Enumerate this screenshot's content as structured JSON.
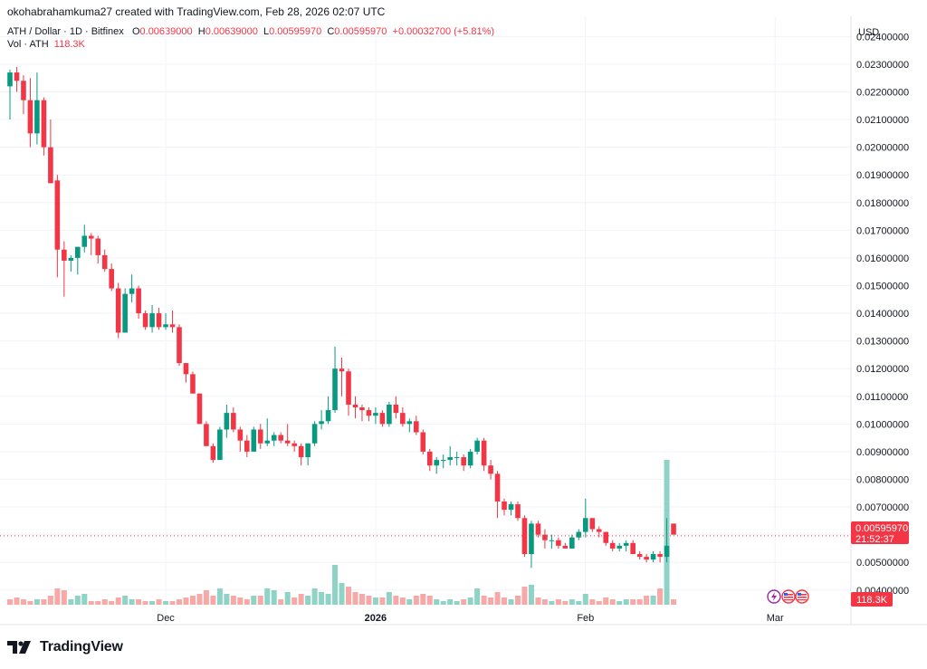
{
  "header": {
    "credit": "okohabrahamkuma27 created with TradingView.com, Feb 28, 2026 02:07 UTC",
    "symbol": "ATH / Dollar · 1D · Bitfinex",
    "o_label": "O",
    "o_value": "0.00639000",
    "h_label": "H",
    "h_value": "0.00639000",
    "l_label": "L",
    "l_value": "0.00595970",
    "c_label": "C",
    "c_value": "0.00595970",
    "change": "+0.00032700 (+5.81%)",
    "vol_label": "Vol · ATH",
    "vol_value": "118.3K",
    "currency": "USD"
  },
  "price_badge": {
    "price": "0.00595970",
    "countdown": "21:52:37"
  },
  "volume_badge": "118.3K",
  "branding": "TradingView",
  "colors": {
    "up": "#089981",
    "down": "#f23645",
    "up_volume": "#8fd3c7",
    "down_volume": "#f7a9a7",
    "grid": "#f0f3fa"
  },
  "chart_data": {
    "type": "candlestick",
    "title": "ATH / Dollar · 1D · Bitfinex",
    "y_axis_ticks": [
      "0.02400000",
      "0.02300000",
      "0.02200000",
      "0.02100000",
      "0.02000000",
      "0.01900000",
      "0.01800000",
      "0.01700000",
      "0.01600000",
      "0.01500000",
      "0.01400000",
      "0.01300000",
      "0.01200000",
      "0.01100000",
      "0.01000000",
      "0.00900000",
      "0.00800000",
      "0.00700000",
      "0.00600000",
      "0.00500000",
      "0.00400000"
    ],
    "ylim": [
      0.0036,
      0.0246
    ],
    "x_axis_labels": [
      {
        "label": "Dec",
        "index": 23
      },
      {
        "label": "2026",
        "index": 54,
        "bold": true
      },
      {
        "label": "Feb",
        "index": 85
      },
      {
        "label": "Mar",
        "index": 113
      }
    ],
    "current_price": 0.0059597,
    "candles": [
      {
        "o": 0.0222,
        "h": 0.0228,
        "l": 0.021,
        "c": 0.0227
      },
      {
        "o": 0.0227,
        "h": 0.0229,
        "l": 0.022,
        "c": 0.0224
      },
      {
        "o": 0.0224,
        "h": 0.0226,
        "l": 0.0212,
        "c": 0.0217
      },
      {
        "o": 0.0217,
        "h": 0.0225,
        "l": 0.02,
        "c": 0.0205
      },
      {
        "o": 0.0205,
        "h": 0.0227,
        "l": 0.0201,
        "c": 0.0217
      },
      {
        "o": 0.0217,
        "h": 0.0218,
        "l": 0.0197,
        "c": 0.02
      },
      {
        "o": 0.02,
        "h": 0.021,
        "l": 0.0188,
        "c": 0.0187
      },
      {
        "o": 0.0188,
        "h": 0.019,
        "l": 0.0153,
        "c": 0.0163
      },
      {
        "o": 0.0163,
        "h": 0.0166,
        "l": 0.0146,
        "c": 0.0159
      },
      {
        "o": 0.0159,
        "h": 0.0161,
        "l": 0.0155,
        "c": 0.016
      },
      {
        "o": 0.016,
        "h": 0.0164,
        "l": 0.0154,
        "c": 0.0164
      },
      {
        "o": 0.0164,
        "h": 0.0172,
        "l": 0.0162,
        "c": 0.0168
      },
      {
        "o": 0.0168,
        "h": 0.0169,
        "l": 0.0161,
        "c": 0.0167
      },
      {
        "o": 0.0167,
        "h": 0.0168,
        "l": 0.0158,
        "c": 0.0161
      },
      {
        "o": 0.0161,
        "h": 0.0163,
        "l": 0.0155,
        "c": 0.0156
      },
      {
        "o": 0.0156,
        "h": 0.0158,
        "l": 0.0148,
        "c": 0.0149
      },
      {
        "o": 0.0149,
        "h": 0.0151,
        "l": 0.0131,
        "c": 0.0133
      },
      {
        "o": 0.0133,
        "h": 0.0149,
        "l": 0.0133,
        "c": 0.0147
      },
      {
        "o": 0.0147,
        "h": 0.0154,
        "l": 0.0144,
        "c": 0.0149
      },
      {
        "o": 0.0149,
        "h": 0.015,
        "l": 0.0138,
        "c": 0.014
      },
      {
        "o": 0.014,
        "h": 0.0141,
        "l": 0.0134,
        "c": 0.0135
      },
      {
        "o": 0.0135,
        "h": 0.0143,
        "l": 0.0133,
        "c": 0.014
      },
      {
        "o": 0.014,
        "h": 0.0142,
        "l": 0.0134,
        "c": 0.0135
      },
      {
        "o": 0.0135,
        "h": 0.014,
        "l": 0.0134,
        "c": 0.0136
      },
      {
        "o": 0.0136,
        "h": 0.0141,
        "l": 0.0133,
        "c": 0.0135
      },
      {
        "o": 0.0135,
        "h": 0.0136,
        "l": 0.0121,
        "c": 0.0122
      },
      {
        "o": 0.0122,
        "h": 0.0122,
        "l": 0.0115,
        "c": 0.0118
      },
      {
        "o": 0.0118,
        "h": 0.0119,
        "l": 0.0111,
        "c": 0.0111
      },
      {
        "o": 0.0111,
        "h": 0.0111,
        "l": 0.01,
        "c": 0.01
      },
      {
        "o": 0.01,
        "h": 0.0101,
        "l": 0.0094,
        "c": 0.0092
      },
      {
        "o": 0.0092,
        "h": 0.0093,
        "l": 0.0086,
        "c": 0.0087
      },
      {
        "o": 0.0087,
        "h": 0.0099,
        "l": 0.0087,
        "c": 0.0098
      },
      {
        "o": 0.0098,
        "h": 0.0107,
        "l": 0.0095,
        "c": 0.0104
      },
      {
        "o": 0.0104,
        "h": 0.0106,
        "l": 0.0097,
        "c": 0.0098
      },
      {
        "o": 0.0098,
        "h": 0.0099,
        "l": 0.009,
        "c": 0.0094
      },
      {
        "o": 0.0094,
        "h": 0.0096,
        "l": 0.0088,
        "c": 0.009
      },
      {
        "o": 0.009,
        "h": 0.0099,
        "l": 0.009,
        "c": 0.0098
      },
      {
        "o": 0.0098,
        "h": 0.01,
        "l": 0.0091,
        "c": 0.0093
      },
      {
        "o": 0.0093,
        "h": 0.0102,
        "l": 0.0092,
        "c": 0.0094
      },
      {
        "o": 0.0094,
        "h": 0.0097,
        "l": 0.0092,
        "c": 0.0096
      },
      {
        "o": 0.0096,
        "h": 0.0097,
        "l": 0.0093,
        "c": 0.0094
      },
      {
        "o": 0.0094,
        "h": 0.01,
        "l": 0.0092,
        "c": 0.0093
      },
      {
        "o": 0.0093,
        "h": 0.0094,
        "l": 0.009,
        "c": 0.0092
      },
      {
        "o": 0.0092,
        "h": 0.0093,
        "l": 0.0085,
        "c": 0.0088
      },
      {
        "o": 0.0088,
        "h": 0.0093,
        "l": 0.0085,
        "c": 0.0093
      },
      {
        "o": 0.0093,
        "h": 0.0101,
        "l": 0.0092,
        "c": 0.01
      },
      {
        "o": 0.01,
        "h": 0.0105,
        "l": 0.0098,
        "c": 0.0101
      },
      {
        "o": 0.0101,
        "h": 0.011,
        "l": 0.01,
        "c": 0.0105
      },
      {
        "o": 0.0105,
        "h": 0.0128,
        "l": 0.0104,
        "c": 0.012
      },
      {
        "o": 0.012,
        "h": 0.0124,
        "l": 0.011,
        "c": 0.0119
      },
      {
        "o": 0.0119,
        "h": 0.012,
        "l": 0.0103,
        "c": 0.0107
      },
      {
        "o": 0.0107,
        "h": 0.011,
        "l": 0.0102,
        "c": 0.0106
      },
      {
        "o": 0.0106,
        "h": 0.0107,
        "l": 0.0101,
        "c": 0.0105
      },
      {
        "o": 0.0105,
        "h": 0.0106,
        "l": 0.0101,
        "c": 0.0103
      },
      {
        "o": 0.0103,
        "h": 0.0106,
        "l": 0.01,
        "c": 0.0104
      },
      {
        "o": 0.0104,
        "h": 0.0105,
        "l": 0.0099,
        "c": 0.01
      },
      {
        "o": 0.01,
        "h": 0.0108,
        "l": 0.0099,
        "c": 0.0107
      },
      {
        "o": 0.0107,
        "h": 0.011,
        "l": 0.0102,
        "c": 0.0104
      },
      {
        "o": 0.0104,
        "h": 0.0106,
        "l": 0.0099,
        "c": 0.01
      },
      {
        "o": 0.01,
        "h": 0.0102,
        "l": 0.0097,
        "c": 0.0101
      },
      {
        "o": 0.0101,
        "h": 0.0103,
        "l": 0.0096,
        "c": 0.0097
      },
      {
        "o": 0.0097,
        "h": 0.0098,
        "l": 0.0089,
        "c": 0.009
      },
      {
        "o": 0.009,
        "h": 0.0091,
        "l": 0.0083,
        "c": 0.0085
      },
      {
        "o": 0.0085,
        "h": 0.0088,
        "l": 0.0082,
        "c": 0.0087
      },
      {
        "o": 0.0087,
        "h": 0.0089,
        "l": 0.0084,
        "c": 0.0087
      },
      {
        "o": 0.0087,
        "h": 0.0092,
        "l": 0.0085,
        "c": 0.0088
      },
      {
        "o": 0.0088,
        "h": 0.009,
        "l": 0.0085,
        "c": 0.0088
      },
      {
        "o": 0.0088,
        "h": 0.0089,
        "l": 0.0083,
        "c": 0.0085
      },
      {
        "o": 0.0085,
        "h": 0.0091,
        "l": 0.0084,
        "c": 0.009
      },
      {
        "o": 0.009,
        "h": 0.0095,
        "l": 0.0089,
        "c": 0.0094
      },
      {
        "o": 0.0094,
        "h": 0.0095,
        "l": 0.0083,
        "c": 0.0085
      },
      {
        "o": 0.0085,
        "h": 0.0087,
        "l": 0.008,
        "c": 0.0082
      },
      {
        "o": 0.0082,
        "h": 0.0083,
        "l": 0.0066,
        "c": 0.0072
      },
      {
        "o": 0.0072,
        "h": 0.0073,
        "l": 0.0067,
        "c": 0.0069
      },
      {
        "o": 0.0069,
        "h": 0.0072,
        "l": 0.0067,
        "c": 0.0071
      },
      {
        "o": 0.0071,
        "h": 0.0072,
        "l": 0.0065,
        "c": 0.0066
      },
      {
        "o": 0.0066,
        "h": 0.0067,
        "l": 0.0052,
        "c": 0.0053
      },
      {
        "o": 0.0053,
        "h": 0.0065,
        "l": 0.0048,
        "c": 0.0064
      },
      {
        "o": 0.0064,
        "h": 0.0065,
        "l": 0.0059,
        "c": 0.006
      },
      {
        "o": 0.006,
        "h": 0.0062,
        "l": 0.0055,
        "c": 0.0058
      },
      {
        "o": 0.0058,
        "h": 0.006,
        "l": 0.0055,
        "c": 0.0058
      },
      {
        "o": 0.0058,
        "h": 0.0059,
        "l": 0.0055,
        "c": 0.0056
      },
      {
        "o": 0.0056,
        "h": 0.0057,
        "l": 0.0055,
        "c": 0.0055
      },
      {
        "o": 0.0055,
        "h": 0.006,
        "l": 0.0055,
        "c": 0.0059
      },
      {
        "o": 0.0059,
        "h": 0.0062,
        "l": 0.0058,
        "c": 0.0061
      },
      {
        "o": 0.0061,
        "h": 0.0073,
        "l": 0.0059,
        "c": 0.0066
      },
      {
        "o": 0.0066,
        "h": 0.0066,
        "l": 0.0061,
        "c": 0.0062
      },
      {
        "o": 0.0062,
        "h": 0.0063,
        "l": 0.0059,
        "c": 0.0061
      },
      {
        "o": 0.0061,
        "h": 0.0061,
        "l": 0.0056,
        "c": 0.0057
      },
      {
        "o": 0.0057,
        "h": 0.0058,
        "l": 0.0054,
        "c": 0.0055
      },
      {
        "o": 0.0055,
        "h": 0.0057,
        "l": 0.0054,
        "c": 0.0056
      },
      {
        "o": 0.0056,
        "h": 0.0058,
        "l": 0.0054,
        "c": 0.0057
      },
      {
        "o": 0.0057,
        "h": 0.0058,
        "l": 0.0053,
        "c": 0.0053
      },
      {
        "o": 0.0053,
        "h": 0.0054,
        "l": 0.0051,
        "c": 0.0052
      },
      {
        "o": 0.0052,
        "h": 0.0053,
        "l": 0.005,
        "c": 0.0051
      },
      {
        "o": 0.0051,
        "h": 0.0054,
        "l": 0.005,
        "c": 0.0053
      },
      {
        "o": 0.0053,
        "h": 0.0054,
        "l": 0.005,
        "c": 0.0052
      },
      {
        "o": 0.0052,
        "h": 0.0066,
        "l": 0.005,
        "c": 0.0056
      },
      {
        "o": 0.0064,
        "h": 0.0064,
        "l": 0.006,
        "c": 0.006
      }
    ],
    "volume": [
      {
        "v": 3,
        "up": false
      },
      {
        "v": 4,
        "up": false
      },
      {
        "v": 3,
        "up": false
      },
      {
        "v": 2,
        "up": false
      },
      {
        "v": 3,
        "up": true
      },
      {
        "v": 3,
        "up": false
      },
      {
        "v": 5,
        "up": false
      },
      {
        "v": 9,
        "up": false
      },
      {
        "v": 8,
        "up": false
      },
      {
        "v": 3,
        "up": true
      },
      {
        "v": 5,
        "up": true
      },
      {
        "v": 6,
        "up": true
      },
      {
        "v": 2,
        "up": false
      },
      {
        "v": 2,
        "up": false
      },
      {
        "v": 3,
        "up": false
      },
      {
        "v": 2,
        "up": false
      },
      {
        "v": 4,
        "up": false
      },
      {
        "v": 5,
        "up": true
      },
      {
        "v": 3,
        "up": true
      },
      {
        "v": 3,
        "up": false
      },
      {
        "v": 2,
        "up": false
      },
      {
        "v": 2,
        "up": true
      },
      {
        "v": 3,
        "up": false
      },
      {
        "v": 2,
        "up": true
      },
      {
        "v": 2,
        "up": false
      },
      {
        "v": 3,
        "up": false
      },
      {
        "v": 4,
        "up": false
      },
      {
        "v": 5,
        "up": false
      },
      {
        "v": 6,
        "up": false
      },
      {
        "v": 8,
        "up": false
      },
      {
        "v": 5,
        "up": false
      },
      {
        "v": 9,
        "up": true
      },
      {
        "v": 6,
        "up": true
      },
      {
        "v": 5,
        "up": false
      },
      {
        "v": 4,
        "up": false
      },
      {
        "v": 3,
        "up": false
      },
      {
        "v": 5,
        "up": true
      },
      {
        "v": 5,
        "up": false
      },
      {
        "v": 9,
        "up": true
      },
      {
        "v": 8,
        "up": true
      },
      {
        "v": 3,
        "up": false
      },
      {
        "v": 7,
        "up": true
      },
      {
        "v": 4,
        "up": false
      },
      {
        "v": 6,
        "up": false
      },
      {
        "v": 5,
        "up": true
      },
      {
        "v": 9,
        "up": true
      },
      {
        "v": 7,
        "up": true
      },
      {
        "v": 6,
        "up": true
      },
      {
        "v": 22,
        "up": true
      },
      {
        "v": 12,
        "up": true
      },
      {
        "v": 10,
        "up": false
      },
      {
        "v": 7,
        "up": false
      },
      {
        "v": 6,
        "up": false
      },
      {
        "v": 5,
        "up": false
      },
      {
        "v": 4,
        "up": true
      },
      {
        "v": 4,
        "up": false
      },
      {
        "v": 7,
        "up": true
      },
      {
        "v": 5,
        "up": false
      },
      {
        "v": 4,
        "up": false
      },
      {
        "v": 3,
        "up": true
      },
      {
        "v": 5,
        "up": false
      },
      {
        "v": 6,
        "up": false
      },
      {
        "v": 5,
        "up": false
      },
      {
        "v": 3,
        "up": true
      },
      {
        "v": 2,
        "up": true
      },
      {
        "v": 3,
        "up": true
      },
      {
        "v": 2,
        "up": true
      },
      {
        "v": 3,
        "up": false
      },
      {
        "v": 4,
        "up": true
      },
      {
        "v": 9,
        "up": true
      },
      {
        "v": 5,
        "up": false
      },
      {
        "v": 4,
        "up": false
      },
      {
        "v": 7,
        "up": false
      },
      {
        "v": 4,
        "up": false
      },
      {
        "v": 3,
        "up": true
      },
      {
        "v": 5,
        "up": false
      },
      {
        "v": 10,
        "up": false
      },
      {
        "v": 11,
        "up": true
      },
      {
        "v": 4,
        "up": false
      },
      {
        "v": 3,
        "up": false
      },
      {
        "v": 2,
        "up": true
      },
      {
        "v": 3,
        "up": false
      },
      {
        "v": 2,
        "up": false
      },
      {
        "v": 3,
        "up": true
      },
      {
        "v": 2,
        "up": true
      },
      {
        "v": 6,
        "up": true
      },
      {
        "v": 3,
        "up": false
      },
      {
        "v": 2,
        "up": false
      },
      {
        "v": 4,
        "up": false
      },
      {
        "v": 3,
        "up": false
      },
      {
        "v": 2,
        "up": true
      },
      {
        "v": 3,
        "up": true
      },
      {
        "v": 3,
        "up": false
      },
      {
        "v": 3,
        "up": false
      },
      {
        "v": 5,
        "up": false
      },
      {
        "v": 5,
        "up": true
      },
      {
        "v": 9,
        "up": false
      },
      {
        "v": 80,
        "up": true
      },
      {
        "v": 3,
        "up": false
      }
    ]
  }
}
